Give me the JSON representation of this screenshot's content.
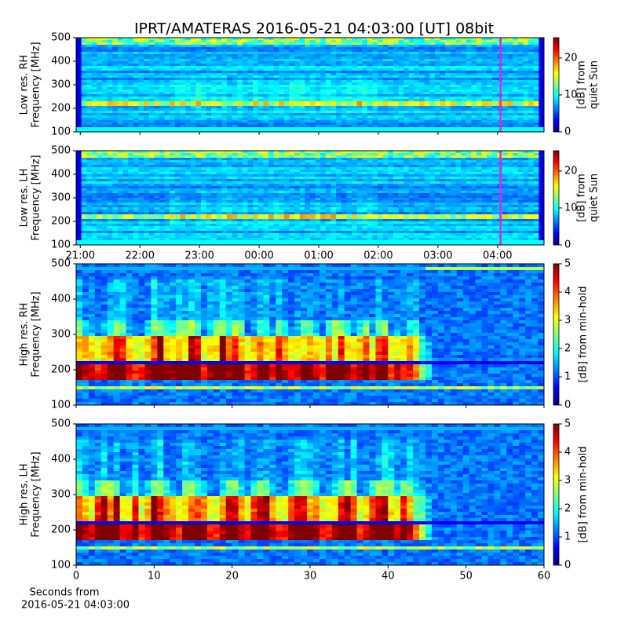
{
  "title": "IPRT/AMATERAS 2016-05-21 04:03:00 [UT]   08bit",
  "chart_data": [
    {
      "type": "spectrogram",
      "resolution": "low",
      "ylabel": [
        "Low res. RH",
        "Frequency [MHz]"
      ],
      "ylim": [
        100,
        500
      ],
      "yticks": [
        100,
        200,
        300,
        400,
        500
      ],
      "xlim": [
        20.93,
        28.78
      ],
      "xticks": [
        21,
        22,
        23,
        24,
        25,
        26,
        27,
        28
      ],
      "xtick_labels": false,
      "marker": {
        "value": 28.05,
        "color": "#e81ee8"
      },
      "colorbar": {
        "label": [
          "[dB] from",
          "quiet Sun"
        ],
        "lim": [
          0,
          25.5
        ],
        "ticks": [
          0,
          10,
          20
        ]
      }
    },
    {
      "type": "spectrogram",
      "resolution": "low",
      "ylabel": [
        "Low res. LH",
        "Frequency [MHz]"
      ],
      "ylim": [
        100,
        500
      ],
      "yticks": [
        100,
        200,
        300,
        400,
        500
      ],
      "xlim": [
        20.93,
        28.78
      ],
      "xticks": [
        {
          "value": 21,
          "label": "21:00"
        },
        {
          "value": 22,
          "label": "22:00"
        },
        {
          "value": 23,
          "label": "23:00"
        },
        {
          "value": 24,
          "label": "00:00"
        },
        {
          "value": 25,
          "label": "01:00"
        },
        {
          "value": 26,
          "label": "02:00"
        },
        {
          "value": 27,
          "label": "03:00"
        },
        {
          "value": 28,
          "label": "04:00"
        }
      ],
      "xtick_labels": true,
      "marker": {
        "value": 28.05,
        "color": "#e81ee8"
      },
      "colorbar": {
        "label": [
          "[dB] from",
          "quiet Sun"
        ],
        "lim": [
          0,
          25.5
        ],
        "ticks": [
          0,
          10,
          20
        ]
      }
    },
    {
      "type": "spectrogram",
      "resolution": "high",
      "ylabel": [
        "High res. RH",
        "Frequency [MHz]"
      ],
      "ylim": [
        100,
        500
      ],
      "yticks": [
        100,
        200,
        300,
        400,
        500
      ],
      "xlim": [
        0,
        60
      ],
      "xticks": [
        0,
        10,
        20,
        30,
        40,
        50,
        60
      ],
      "xtick_labels": false,
      "colorbar": {
        "label": [
          "[dB] from min-hold"
        ],
        "lim": [
          0,
          5
        ],
        "ticks": [
          0,
          1,
          2,
          3,
          4,
          5
        ]
      }
    },
    {
      "type": "spectrogram",
      "resolution": "high",
      "ylabel": [
        "High res. LH",
        "Frequency [MHz]"
      ],
      "ylim": [
        100,
        500
      ],
      "yticks": [
        100,
        200,
        300,
        400,
        500
      ],
      "xlim": [
        0,
        60
      ],
      "xticks": [
        0,
        10,
        20,
        30,
        40,
        50,
        60
      ],
      "xtick_labels": true,
      "xlabel": [
        "Seconds from",
        "2016-05-21 04:03:00"
      ],
      "colorbar": {
        "label": [
          "[dB] from min-hold"
        ],
        "lim": [
          0,
          5
        ],
        "ticks": [
          0,
          1,
          2,
          3,
          4,
          5
        ]
      }
    }
  ]
}
